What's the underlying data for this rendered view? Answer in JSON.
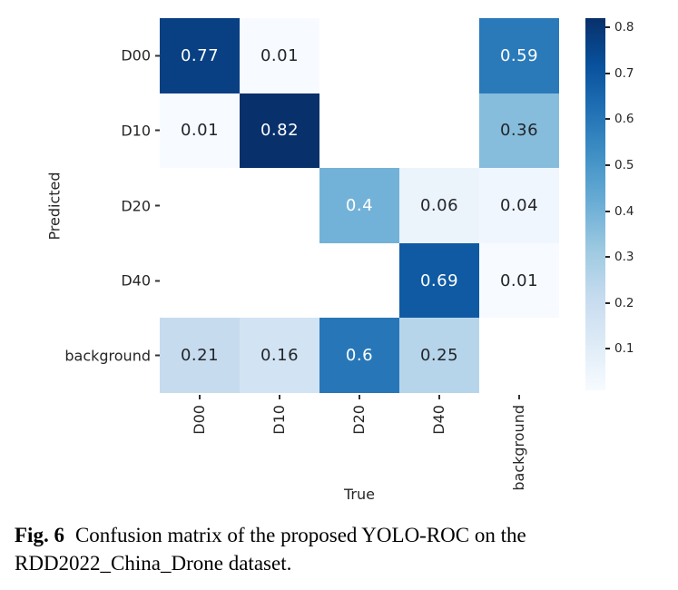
{
  "chart_data": {
    "type": "heatmap",
    "title": "",
    "xlabel": "True",
    "ylabel": "Predicted",
    "x_categories": [
      "D00",
      "D10",
      "D20",
      "D40",
      "background"
    ],
    "y_categories": [
      "D00",
      "D10",
      "D20",
      "D40",
      "background"
    ],
    "matrix": [
      [
        0.77,
        0.01,
        null,
        null,
        0.59
      ],
      [
        0.01,
        0.82,
        null,
        null,
        0.36
      ],
      [
        null,
        null,
        0.4,
        0.06,
        0.04
      ],
      [
        null,
        null,
        null,
        0.69,
        0.01
      ],
      [
        0.21,
        0.16,
        0.6,
        0.25,
        null
      ]
    ],
    "cell_labels": [
      [
        "0.77",
        "0.01",
        "",
        "",
        "0.59"
      ],
      [
        "0.01",
        "0.82",
        "",
        "",
        "0.36"
      ],
      [
        "",
        "",
        "0.4",
        "0.06",
        "0.04"
      ],
      [
        "",
        "",
        "",
        "0.69",
        "0.01"
      ],
      [
        "0.21",
        "0.16",
        "0.6",
        "0.25",
        ""
      ]
    ],
    "vmin": 0.01,
    "vmax": 0.82,
    "colormap": "Blues",
    "colormap_anchors": [
      "#f7fbff",
      "#deebf7",
      "#c6dbef",
      "#9ecae1",
      "#6baed6",
      "#4292c6",
      "#2171b5",
      "#08519c",
      "#08306b"
    ],
    "empty_cell_color": "#ffffff",
    "annot_light_color": "#ffffff",
    "annot_dark_color": "#22262b",
    "light_text_threshold": 0.46,
    "colorbar_ticks": [
      "0.8",
      "0.7",
      "0.6",
      "0.5",
      "0.4",
      "0.3",
      "0.2",
      "0.1"
    ],
    "legend_position": "right",
    "grid": false
  },
  "caption": {
    "label": "Fig. 6",
    "line1": "Confusion matrix of the proposed YOLO-ROC on the",
    "line2": "RDD2022_China_Drone dataset."
  }
}
